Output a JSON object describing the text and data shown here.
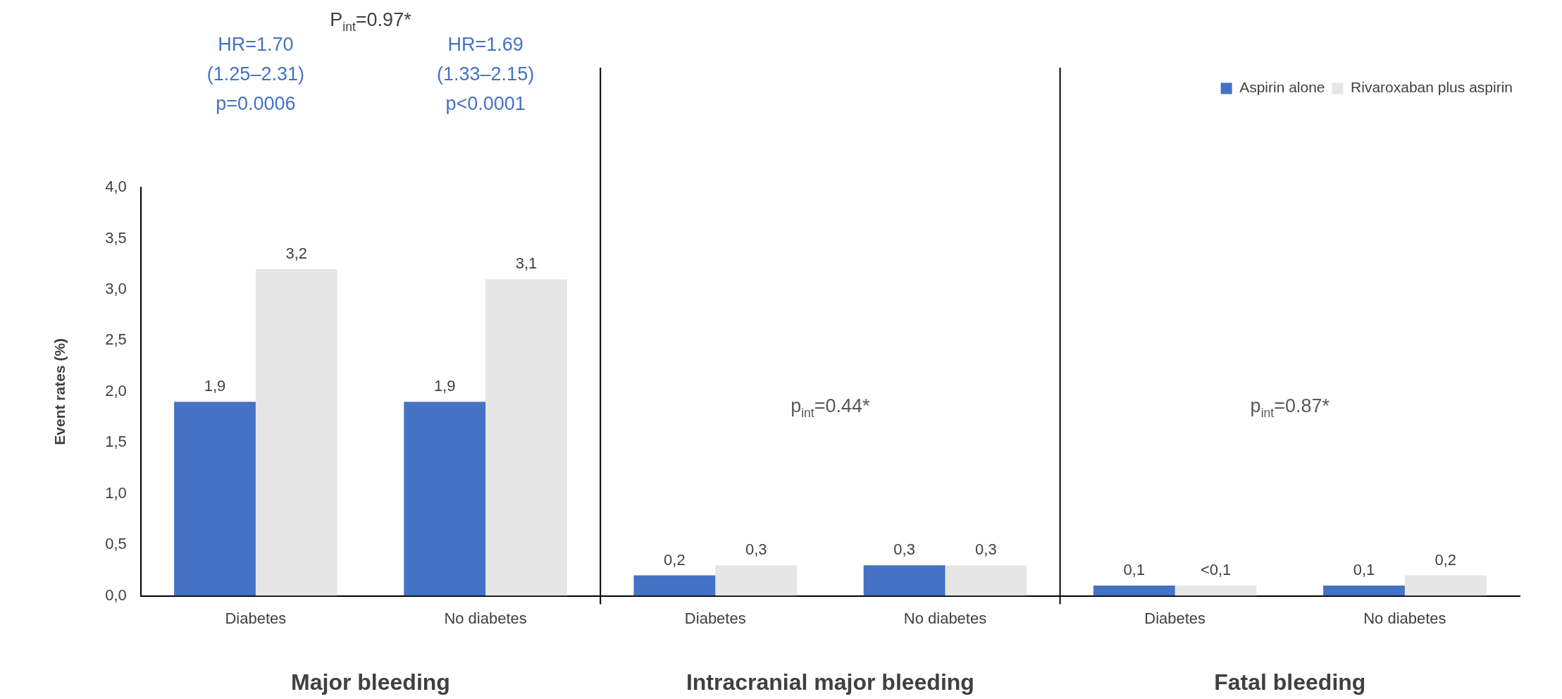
{
  "chart_data": {
    "type": "bar",
    "ylabel": "Event rates (%)",
    "categories": [
      "Diabetes",
      "No diabetes",
      "Diabetes",
      "No diabetes",
      "Diabetes",
      "No diabetes"
    ],
    "series": [
      {
        "name": "Aspirin alone",
        "color": "#4472c4",
        "values": [
          1.9,
          1.9,
          0.2,
          0.3,
          0.1,
          0.1
        ],
        "value_labels": [
          "1,9",
          "1,9",
          "0,2",
          "0,3",
          "0,1",
          "0,1"
        ]
      },
      {
        "name": "Rivaroxaban plus aspirin",
        "color": "#e7e6e6",
        "values": [
          3.2,
          3.1,
          0.3,
          0.3,
          0.1,
          0.2
        ],
        "value_labels": [
          "3,2",
          "3,1",
          "0,3",
          "0,3",
          "<0,1",
          "0,2"
        ]
      }
    ],
    "ylim": [
      0,
      4
    ],
    "yticks": [
      {
        "value": 0,
        "label": "0,0"
      },
      {
        "value": 0.5,
        "label": "0,5"
      },
      {
        "value": 1,
        "label": "1,0"
      },
      {
        "value": 1.5,
        "label": "1,5"
      },
      {
        "value": 2,
        "label": "2,0"
      },
      {
        "value": 2.5,
        "label": "2,5"
      },
      {
        "value": 3,
        "label": "3,0"
      },
      {
        "value": 3.5,
        "label": "3,5"
      },
      {
        "value": 4,
        "label": "4,0"
      }
    ],
    "grid": false,
    "legend": "top right",
    "annotations": [
      "P$_{int}$=0.97*",
      "HR=1.70\n(1.25–2.31)\np=0.0006",
      "HR=1.69\n(1.33–2.15)\np<0.0001",
      "p$_{int}$=0.44*",
      "p$_{int}$=0.87*",
      "Major bleeding",
      "Intracranial major bleeding",
      "Fatal bleeding"
    ]
  }
}
